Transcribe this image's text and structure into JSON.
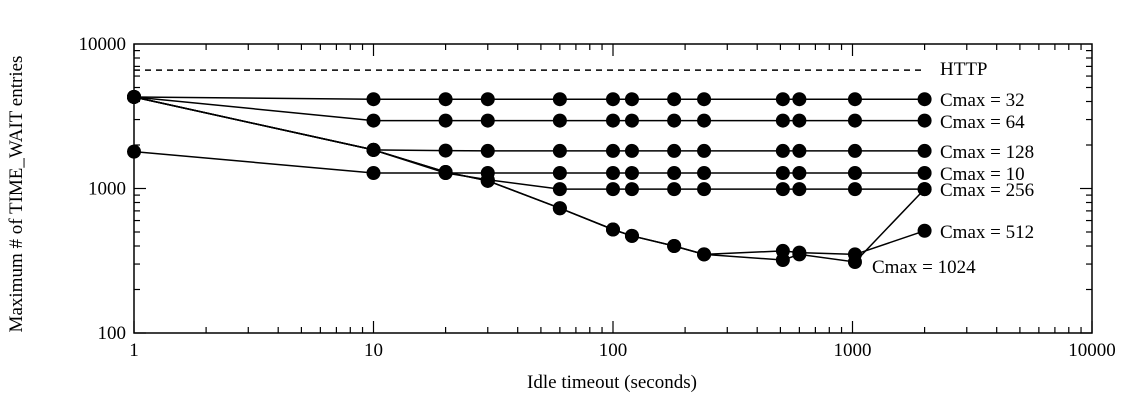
{
  "chart_data": {
    "type": "line",
    "xlabel": "Idle timeout (seconds)",
    "ylabel": "Maximum # of TIME_WAIT entries",
    "xscale": "log",
    "yscale": "log",
    "xlim": [
      1,
      10000
    ],
    "ylim": [
      100,
      10000
    ],
    "x_ticks": [
      1,
      10,
      100,
      1000,
      10000
    ],
    "x_tick_labels": [
      "1",
      "10",
      "100",
      "1000",
      "10000"
    ],
    "y_ticks": [
      100,
      1000,
      10000
    ],
    "y_tick_labels": [
      "100",
      "1000",
      "10000"
    ],
    "grid": false,
    "reference_lines": [
      {
        "label": "HTTP",
        "y": 6600,
        "style": "dashed"
      }
    ],
    "series": [
      {
        "name": "Cmax = 32",
        "x": [
          1,
          10,
          20,
          30,
          60,
          100,
          120,
          180,
          240,
          512,
          600,
          1024,
          2000
        ],
        "y": [
          4300,
          4150,
          4150,
          4150,
          4150,
          4150,
          4150,
          4150,
          4150,
          4150,
          4150,
          4150,
          4150
        ]
      },
      {
        "name": "Cmax = 64",
        "x": [
          1,
          10,
          20,
          30,
          60,
          100,
          120,
          180,
          240,
          512,
          600,
          1024,
          2000
        ],
        "y": [
          4300,
          2950,
          2950,
          2950,
          2950,
          2950,
          2950,
          2950,
          2950,
          2950,
          2950,
          2950,
          2950
        ]
      },
      {
        "name": "Cmax = 128",
        "x": [
          1,
          10,
          20,
          30,
          60,
          100,
          120,
          180,
          240,
          512,
          600,
          1024,
          2000
        ],
        "y": [
          4300,
          1850,
          1830,
          1820,
          1820,
          1820,
          1820,
          1820,
          1820,
          1820,
          1820,
          1820,
          1820
        ]
      },
      {
        "name": "Cmax = 10",
        "x": [
          1,
          10,
          20,
          30,
          60,
          100,
          120,
          180,
          240,
          512,
          600,
          1024,
          2000
        ],
        "y": [
          1800,
          1280,
          1280,
          1280,
          1280,
          1280,
          1280,
          1280,
          1280,
          1280,
          1280,
          1280,
          1280
        ]
      },
      {
        "name": "Cmax = 256",
        "x": [
          1,
          10,
          20,
          30,
          60,
          100,
          120,
          180,
          240,
          512,
          600,
          1024,
          2000
        ],
        "y": [
          4300,
          1850,
          1280,
          1150,
          990,
          990,
          990,
          990,
          990,
          990,
          990,
          990,
          990
        ]
      },
      {
        "name": "Cmax = 512",
        "x": [
          1,
          10,
          20,
          30,
          60,
          100,
          120,
          180,
          240,
          512,
          600,
          1024,
          2000
        ],
        "y": [
          4300,
          1850,
          1300,
          1130,
          730,
          520,
          470,
          400,
          350,
          370,
          360,
          350,
          510
        ]
      },
      {
        "name": "Cmax = 1024",
        "x": [
          1,
          10,
          20,
          30,
          60,
          100,
          120,
          180,
          240,
          512,
          600,
          1024,
          2000
        ],
        "y": [
          4300,
          1850,
          1300,
          1130,
          730,
          520,
          470,
          400,
          350,
          320,
          350,
          310,
          990
        ]
      }
    ],
    "series_labels": [
      {
        "text": "HTTP"
      },
      {
        "text": "Cmax = 32"
      },
      {
        "text": "Cmax = 64"
      },
      {
        "text": "Cmax = 128"
      },
      {
        "text": "Cmax = 10"
      },
      {
        "text": "Cmax = 256"
      },
      {
        "text": "Cmax = 512"
      },
      {
        "text": "Cmax = 1024"
      }
    ]
  }
}
